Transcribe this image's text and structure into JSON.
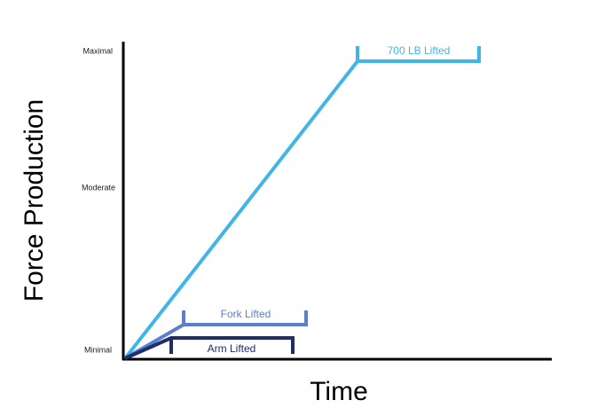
{
  "axes": {
    "y_label": "Force Production",
    "x_label": "Time",
    "y_levels": [
      "Maximal",
      "Moderate",
      "Minimal"
    ]
  },
  "curves": [
    {
      "label": "700 LB Lifted"
    },
    {
      "label": "Fork Lifted"
    },
    {
      "label": "Arm Lifted"
    }
  ]
}
